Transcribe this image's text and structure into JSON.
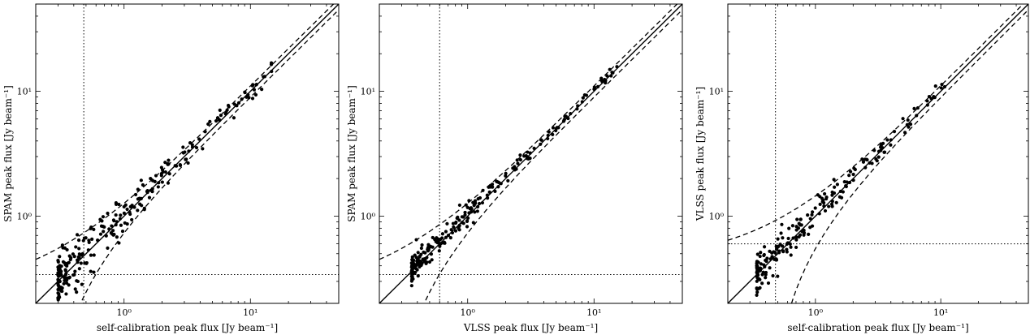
{
  "chart_data": [
    {
      "type": "scatter",
      "xlabel": "self-calibration peak flux [Jy beam⁻¹]",
      "ylabel": "SPAM peak flux [Jy beam⁻¹]",
      "xscale": "log",
      "yscale": "log",
      "xlim": [
        0.2,
        50
      ],
      "ylim": [
        0.2,
        50
      ],
      "xticks": [
        {
          "value": 1,
          "label": "10⁰"
        },
        {
          "value": 10,
          "label": "10¹"
        }
      ],
      "yticks": [
        {
          "value": 1,
          "label": "10⁰"
        },
        {
          "value": 10,
          "label": "10¹"
        }
      ],
      "threshold_x": 0.48,
      "threshold_y": 0.34,
      "n_points": 260,
      "spread": 0.17,
      "pt_xmin": 0.3,
      "pt_xmax": 15
    },
    {
      "type": "scatter",
      "xlabel": "VLSS peak flux [Jy beam⁻¹]",
      "ylabel": "SPAM peak flux [Jy beam⁻¹]",
      "xscale": "log",
      "yscale": "log",
      "xlim": [
        0.2,
        50
      ],
      "ylim": [
        0.2,
        50
      ],
      "xticks": [
        {
          "value": 1,
          "label": "10⁰"
        },
        {
          "value": 10,
          "label": "10¹"
        }
      ],
      "yticks": [
        {
          "value": 1,
          "label": "10⁰"
        },
        {
          "value": 10,
          "label": "10¹"
        }
      ],
      "threshold_x": 0.6,
      "threshold_y": 0.34,
      "n_points": 230,
      "spread": 0.08,
      "pt_xmin": 0.36,
      "pt_xmax": 17
    },
    {
      "type": "scatter",
      "xlabel": "self-calibration peak flux [Jy beam⁻¹]",
      "ylabel": "VLSS peak flux [Jy beam⁻¹]",
      "xscale": "log",
      "yscale": "log",
      "xlim": [
        0.2,
        50
      ],
      "ylim": [
        0.2,
        50
      ],
      "xticks": [
        {
          "value": 1,
          "label": "10⁰"
        },
        {
          "value": 10,
          "label": "10¹"
        }
      ],
      "yticks": [
        {
          "value": 1,
          "label": "10⁰"
        },
        {
          "value": 10,
          "label": "10¹"
        }
      ],
      "threshold_x": 0.48,
      "threshold_y": 0.6,
      "n_points": 200,
      "spread": 0.12,
      "pt_xmin": 0.34,
      "pt_xmax": 11
    }
  ]
}
